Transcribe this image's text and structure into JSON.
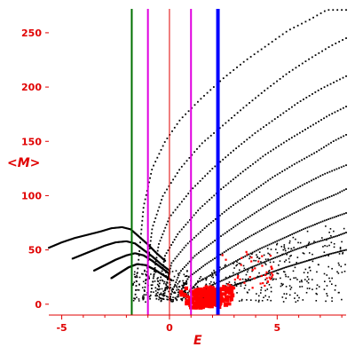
{
  "chart_data": {
    "type": "scatter",
    "xlabel": "<M>",
    "ylabel": "",
    "xlabel_bottom": "E",
    "xlim": [
      -5.6,
      8.2
    ],
    "ylim": [
      -10,
      272
    ],
    "xticks": [
      -5,
      0,
      5
    ],
    "yticks": [
      0,
      50,
      100,
      150,
      200,
      250
    ],
    "grid": false,
    "legend": "none",
    "colors": {
      "axis": "#e00000",
      "points_black": "#000000",
      "points_red": "#ff0000",
      "line_green": "#007000",
      "line_magenta": "#e000e0",
      "line_blue": "#0000ff"
    },
    "vlines": [
      {
        "x": -1.75,
        "color": "#007000",
        "width": 2
      },
      {
        "x": -1.0,
        "color": "#e000e0",
        "width": 2
      },
      {
        "x": 1.0,
        "color": "#e000e0",
        "width": 2
      },
      {
        "x": 2.25,
        "color": "#0000ff",
        "width": 4
      }
    ],
    "curve_families": [
      {
        "name": "",
        "color": "#000000",
        "points": [
          [
            -5.6,
            52
          ],
          [
            -5,
            57
          ],
          [
            -4.4,
            61
          ],
          [
            -3.8,
            64
          ],
          [
            -3.2,
            67
          ],
          [
            -2.7,
            70
          ],
          [
            -2.2,
            71
          ],
          [
            -1.8,
            69
          ],
          [
            -1.4,
            62
          ],
          [
            -1,
            55
          ],
          [
            -0.6,
            47
          ],
          [
            -0.2,
            40
          ]
        ]
      },
      {
        "name": "",
        "color": "#000000",
        "points": [
          [
            -4.5,
            42
          ],
          [
            -4,
            46
          ],
          [
            -3.5,
            50
          ],
          [
            -3,
            54
          ],
          [
            -2.5,
            57
          ],
          [
            -2,
            58
          ],
          [
            -1.6,
            56
          ],
          [
            -1.2,
            50
          ],
          [
            -0.8,
            44
          ],
          [
            -0.4,
            37
          ],
          [
            0,
            31
          ]
        ]
      },
      {
        "name": "",
        "color": "#000000",
        "points": [
          [
            -3.5,
            31
          ],
          [
            -3,
            36
          ],
          [
            -2.5,
            41
          ],
          [
            -2,
            45
          ],
          [
            -1.6,
            47
          ],
          [
            -1.2,
            45
          ],
          [
            -0.8,
            40
          ],
          [
            -0.4,
            34
          ],
          [
            0,
            28
          ]
        ]
      },
      {
        "name": "",
        "color": "#000000",
        "points": [
          [
            -2.7,
            24
          ],
          [
            -2.3,
            29
          ],
          [
            -1.9,
            34
          ],
          [
            -1.5,
            37
          ],
          [
            -1.1,
            36
          ],
          [
            -0.7,
            32
          ],
          [
            -0.3,
            27
          ],
          [
            0.1,
            22
          ]
        ]
      }
    ],
    "fans": [
      {
        "points": [
          [
            -1.6,
            5
          ],
          [
            -1.2,
            90
          ],
          [
            -0.8,
            125
          ],
          [
            -0.2,
            150
          ],
          [
            0.5,
            170
          ],
          [
            1.5,
            190
          ],
          [
            2.5,
            208
          ],
          [
            3.5,
            224
          ],
          [
            4.5,
            238
          ],
          [
            5.5,
            252
          ],
          [
            6.5,
            262
          ],
          [
            7.3,
            271
          ],
          [
            8.2,
            271
          ]
        ]
      },
      {
        "points": [
          [
            -1.2,
            5
          ],
          [
            -0.8,
            70
          ],
          [
            -0.3,
            100
          ],
          [
            0.5,
            125
          ],
          [
            1.5,
            148
          ],
          [
            2.5,
            165
          ],
          [
            3.5,
            182
          ],
          [
            4.5,
            198
          ],
          [
            5.5,
            213
          ],
          [
            6.5,
            226
          ],
          [
            7.5,
            238
          ],
          [
            8.2,
            245
          ]
        ]
      },
      {
        "points": [
          [
            -0.9,
            5
          ],
          [
            -0.5,
            55
          ],
          [
            0,
            80
          ],
          [
            1,
            105
          ],
          [
            2,
            125
          ],
          [
            3,
            142
          ],
          [
            4,
            158
          ],
          [
            5,
            172
          ],
          [
            6,
            186
          ],
          [
            7,
            198
          ],
          [
            8.2,
            210
          ]
        ]
      },
      {
        "points": [
          [
            -0.6,
            5
          ],
          [
            -0.2,
            45
          ],
          [
            0.4,
            65
          ],
          [
            1.4,
            88
          ],
          [
            2.4,
            106
          ],
          [
            3.4,
            122
          ],
          [
            4.4,
            137
          ],
          [
            5.4,
            150
          ],
          [
            6.4,
            162
          ],
          [
            7.4,
            174
          ],
          [
            8.2,
            182
          ]
        ]
      },
      {
        "points": [
          [
            -0.3,
            5
          ],
          [
            0.1,
            38
          ],
          [
            0.8,
            55
          ],
          [
            1.8,
            73
          ],
          [
            2.8,
            89
          ],
          [
            3.8,
            103
          ],
          [
            4.8,
            117
          ],
          [
            5.8,
            129
          ],
          [
            6.8,
            140
          ],
          [
            7.6,
            150
          ],
          [
            8.2,
            156
          ]
        ]
      },
      {
        "points": [
          [
            0,
            5
          ],
          [
            0.5,
            30
          ],
          [
            1.2,
            45
          ],
          [
            2.2,
            60
          ],
          [
            3.2,
            74
          ],
          [
            4.2,
            87
          ],
          [
            5.2,
            99
          ],
          [
            6.2,
            110
          ],
          [
            7.2,
            120
          ],
          [
            8.2,
            128
          ]
        ]
      },
      {
        "points": [
          [
            0.3,
            5
          ],
          [
            0.9,
            25
          ],
          [
            1.7,
            37
          ],
          [
            2.7,
            50
          ],
          [
            3.7,
            62
          ],
          [
            4.7,
            73
          ],
          [
            5.7,
            83
          ],
          [
            6.7,
            93
          ],
          [
            7.7,
            101
          ],
          [
            8.2,
            106
          ]
        ]
      },
      {
        "points": [
          [
            0.6,
            5
          ],
          [
            1.3,
            20
          ],
          [
            2.2,
            30
          ],
          [
            3.2,
            41
          ],
          [
            4.2,
            51
          ],
          [
            5.2,
            60
          ],
          [
            6.2,
            69
          ],
          [
            7.2,
            77
          ],
          [
            8.2,
            84
          ]
        ]
      },
      {
        "points": [
          [
            1,
            5
          ],
          [
            1.8,
            16
          ],
          [
            2.8,
            25
          ],
          [
            3.8,
            34
          ],
          [
            4.8,
            42
          ],
          [
            5.8,
            50
          ],
          [
            6.8,
            57
          ],
          [
            7.8,
            63
          ],
          [
            8.2,
            66
          ]
        ]
      },
      {
        "points": [
          [
            1.5,
            5
          ],
          [
            2.4,
            13
          ],
          [
            3.4,
            20
          ],
          [
            4.4,
            27
          ],
          [
            5.4,
            34
          ],
          [
            6.4,
            40
          ],
          [
            7.4,
            46
          ],
          [
            8.2,
            50
          ]
        ]
      }
    ],
    "red_cluster": {
      "center": [
        1.8,
        8
      ],
      "spread": [
        1.3,
        12
      ]
    }
  }
}
